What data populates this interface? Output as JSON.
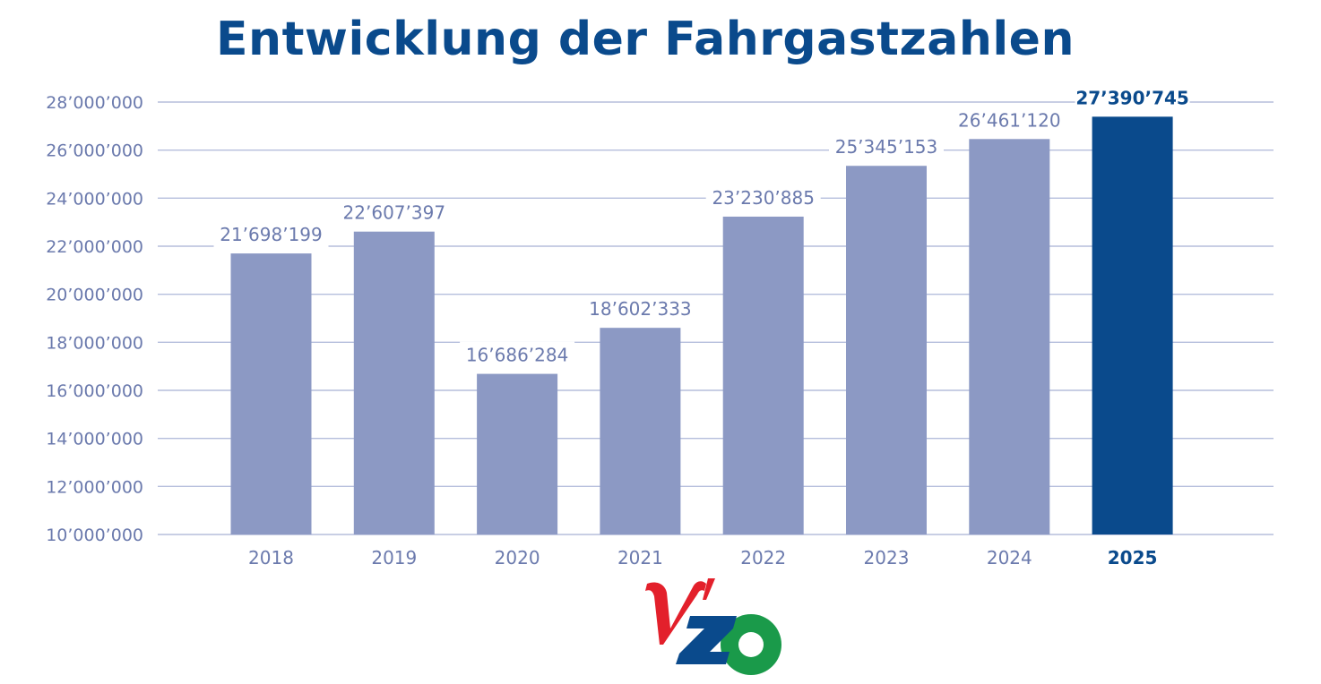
{
  "chart_data": {
    "type": "bar",
    "title": "Entwicklung der Fahrgastzahlen",
    "categories": [
      "2018",
      "2019",
      "2020",
      "2021",
      "2022",
      "2023",
      "2024",
      "2025"
    ],
    "values": [
      21698199,
      22607397,
      16686284,
      18602333,
      23230885,
      25345153,
      26461120,
      27390745
    ],
    "value_labels": [
      "21’698’199",
      "22’607’397",
      "16’686’284",
      "18’602’333",
      "23’230’885",
      "25’345’153",
      "26’461’120",
      "27’390’745"
    ],
    "highlight_index": 7,
    "y_ticks": [
      10000000,
      12000000,
      14000000,
      16000000,
      18000000,
      20000000,
      22000000,
      24000000,
      26000000,
      28000000
    ],
    "y_tick_labels": [
      "10’000’000",
      "12’000’000",
      "14’000’000",
      "16’000’000",
      "18’000’000",
      "20’000’000",
      "22’000’000",
      "24’000’000",
      "26’000’000",
      "28’000’000"
    ],
    "ylim": [
      10000000,
      28000000
    ],
    "grid": true,
    "colors": {
      "bar": "#8c99c4",
      "highlight": "#0a4a8c",
      "grid": "#b5bedc",
      "text": "#6b7aad",
      "title": "#0a4a8c"
    }
  },
  "logo": {
    "text": "VZO",
    "colors": {
      "v": "#e3202b",
      "z": "#0a4a8c",
      "o": "#1a9a4a"
    }
  }
}
